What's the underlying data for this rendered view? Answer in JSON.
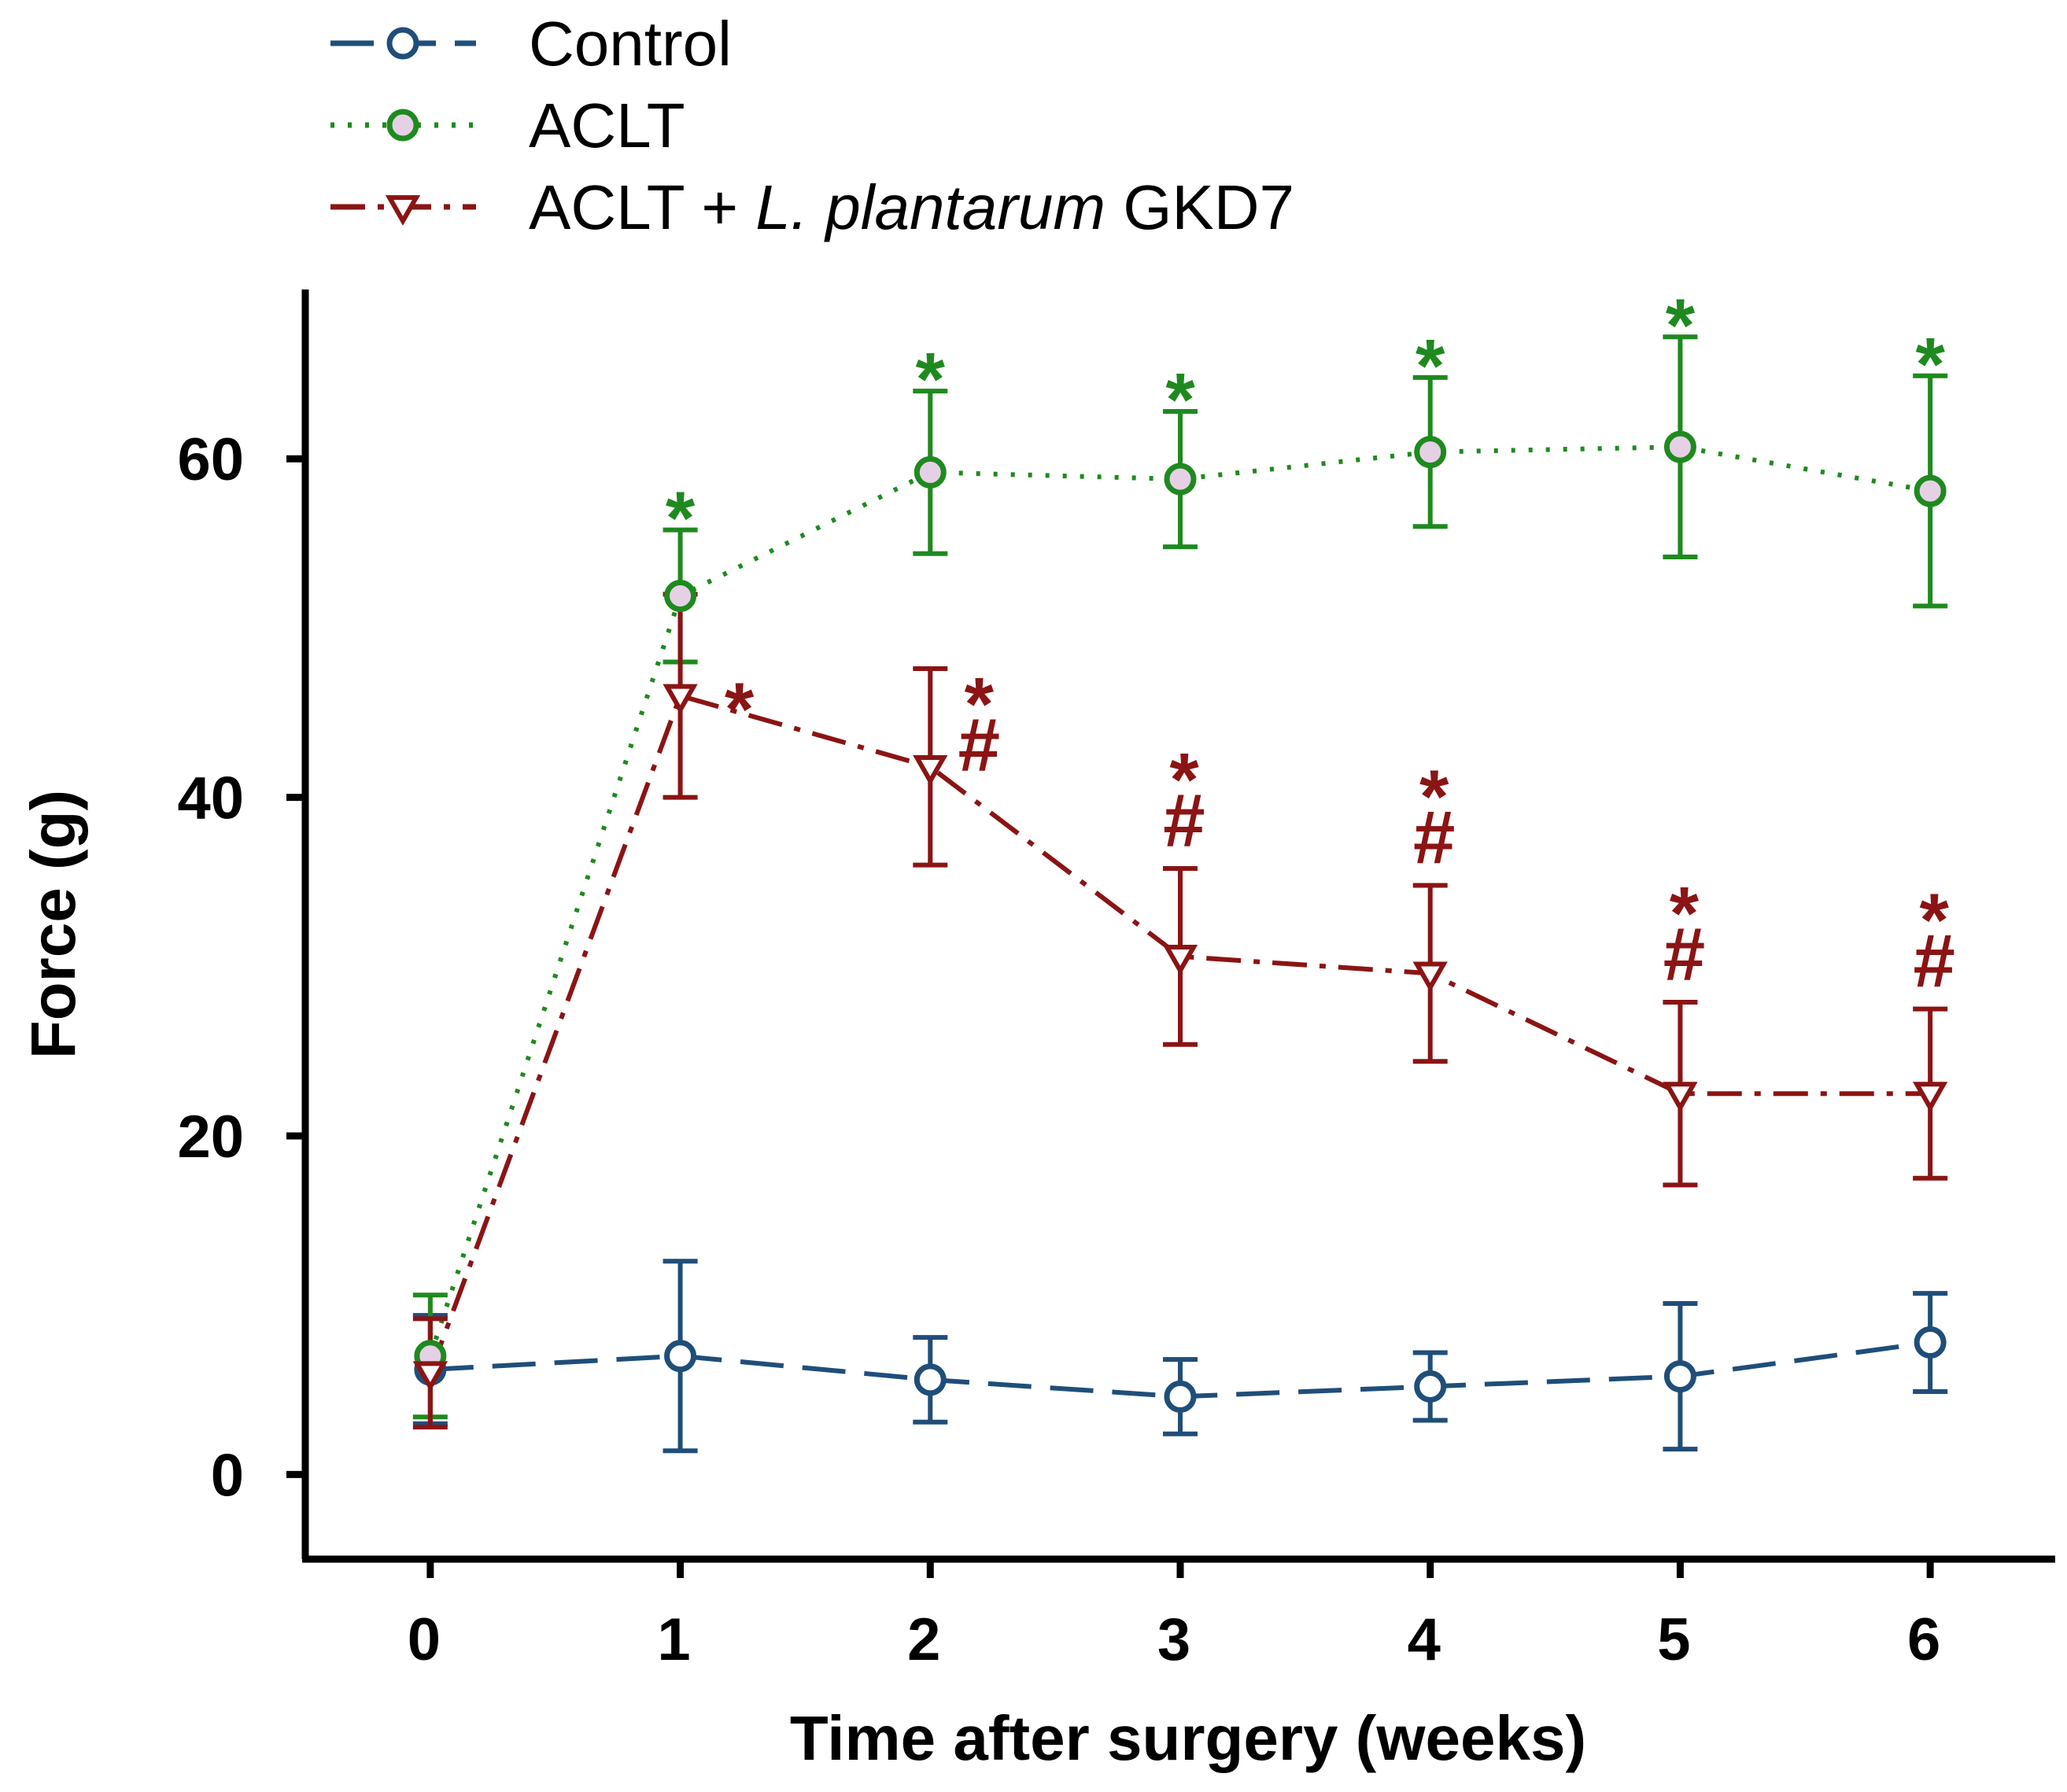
{
  "chart_data": {
    "type": "line",
    "xlabel": "Time after surgery (weeks)",
    "ylabel": "Force (g)",
    "x": [
      0,
      1,
      2,
      3,
      4,
      5,
      6
    ],
    "xticks": [
      "0",
      "1",
      "2",
      "3",
      "4",
      "5",
      "6"
    ],
    "yticks": [
      "0",
      "20",
      "40",
      "60"
    ],
    "xlim": [
      -0.5,
      6.5
    ],
    "ylim": [
      -5,
      70
    ],
    "legend_position": "top-left",
    "series": [
      {
        "name": "Control",
        "legend_label": {
          "pre": "Control",
          "italic": "",
          "post": ""
        },
        "color": "#1f4e79",
        "line_style": "dashed",
        "marker": "circle",
        "marker_fill": "#ffffff",
        "values": [
          6.2,
          7.0,
          5.6,
          4.6,
          5.2,
          5.8,
          7.8
        ],
        "errors": [
          3.2,
          5.6,
          2.5,
          2.2,
          2.0,
          4.3,
          2.9
        ]
      },
      {
        "name": "ACLT",
        "legend_label": {
          "pre": "ACLT",
          "italic": "",
          "post": ""
        },
        "color": "#1e8a1e",
        "line_style": "dotted",
        "marker": "circle",
        "marker_fill": "#e6d0e6",
        "values": [
          7.0,
          51.9,
          59.2,
          58.8,
          60.4,
          60.7,
          58.1
        ],
        "errors": [
          3.6,
          3.9,
          4.8,
          4.0,
          4.4,
          6.5,
          6.8
        ],
        "significance": [
          "",
          "*",
          "*",
          "*",
          "*",
          "*",
          "*"
        ]
      },
      {
        "name": "ACLT + L. plantarum GKD7",
        "legend_label": {
          "pre": "ACLT + ",
          "italic": "L. plantarum",
          "post": " GKD7"
        },
        "color": "#8b1414",
        "line_style": "dash-dot",
        "marker": "triangle-down",
        "marker_fill": "#ffffff",
        "values": [
          6.0,
          46.0,
          41.8,
          30.6,
          29.6,
          22.5,
          22.5
        ],
        "errors": [
          3.2,
          6.0,
          5.8,
          5.2,
          5.2,
          5.4,
          5.0
        ],
        "significance": [
          "",
          "*",
          "*\n#",
          "*\n#",
          "*\n#",
          "*\n#",
          "*\n#"
        ]
      }
    ]
  }
}
